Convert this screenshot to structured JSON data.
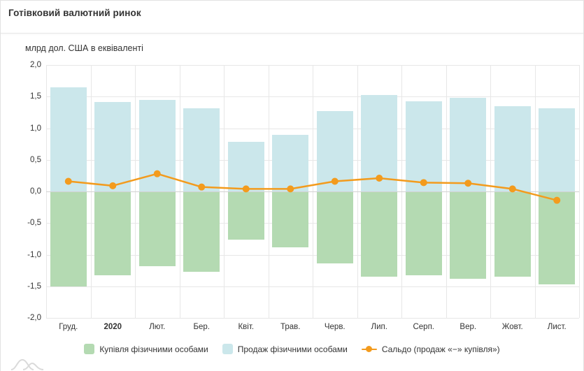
{
  "header": {
    "title": "Готівковий валютний ринок"
  },
  "chart_data": {
    "type": "bar",
    "subtype": "bars-with-line-overlay",
    "subtitle": "млрд дол. США в еквіваленті",
    "categories": [
      "Груд.",
      "2020",
      "Лют.",
      "Бер.",
      "Квіт.",
      "Трав.",
      "Черв.",
      "Лип.",
      "Серп.",
      "Вер.",
      "Жовт.",
      "Лист."
    ],
    "bold_category_index": 1,
    "series": [
      {
        "name": "Купівля фізичними особами",
        "type": "bar",
        "color": "#b4dab2",
        "values": [
          -1.5,
          -1.33,
          -1.18,
          -1.27,
          -0.76,
          -0.88,
          -1.14,
          -1.35,
          -1.33,
          -1.38,
          -1.35,
          -1.47
        ]
      },
      {
        "name": "Продаж фізичними особами",
        "type": "bar",
        "color": "#cbe7eb",
        "values": [
          1.65,
          1.41,
          1.45,
          1.32,
          0.78,
          0.89,
          1.27,
          1.53,
          1.43,
          1.48,
          1.35,
          1.31
        ]
      },
      {
        "name": "Сальдо (продаж «−» купівля»)",
        "type": "line",
        "color": "#f39b1d",
        "values": [
          0.16,
          0.09,
          0.28,
          0.07,
          0.04,
          0.04,
          0.16,
          0.21,
          0.14,
          0.13,
          0.04,
          -0.14
        ]
      }
    ],
    "ylim": [
      -2.0,
      2.0
    ],
    "ytick_step": 0.5,
    "ytick_labels": [
      "2,0",
      "1,5",
      "1,0",
      "0,5",
      "0,0",
      "-0,5",
      "-1,0",
      "-1,5",
      "-2,0"
    ],
    "grid": "both",
    "legend_position": "bottom",
    "colors": {
      "grid": "#e7e7e7",
      "zero_line": "#d2d2d2",
      "text": "#333333"
    }
  }
}
